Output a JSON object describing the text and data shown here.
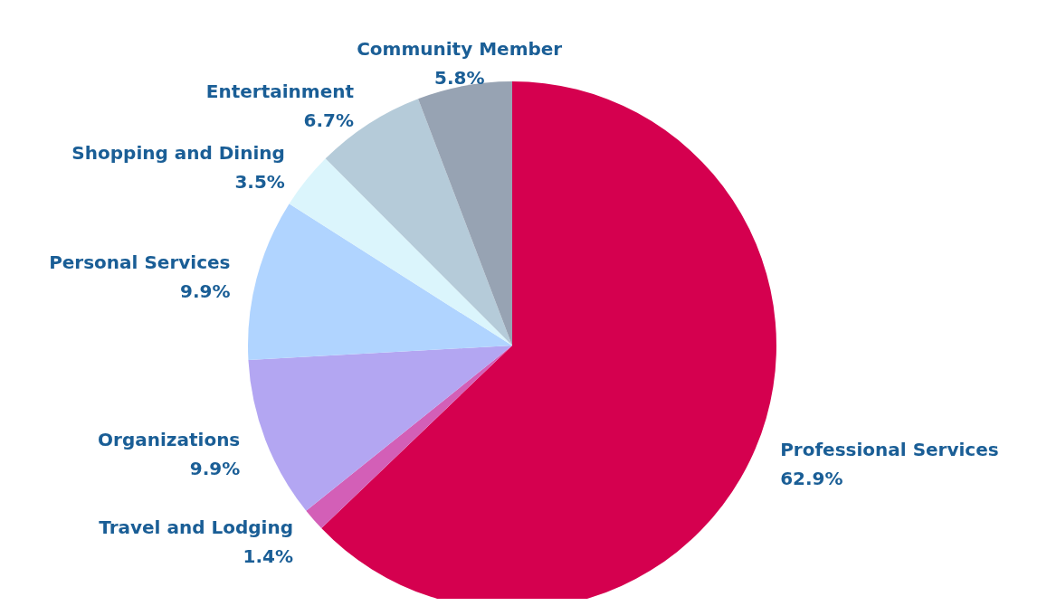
{
  "chart_data": {
    "type": "pie",
    "categories": [
      "Professional Services",
      "Travel and Lodging",
      "Organizations",
      "Personal Services",
      "Shopping and Dining",
      "Entertainment",
      "Community Member"
    ],
    "values": [
      62.9,
      1.4,
      9.9,
      9.9,
      3.5,
      6.7,
      5.8
    ],
    "colors": [
      "#d5004f",
      "#d35fb7",
      "#b3a6f2",
      "#b0d4ff",
      "#dbf5fc",
      "#b5cbd9",
      "#97a3b3"
    ],
    "value_labels": [
      "62.9%",
      "1.4%",
      "9.9%",
      "9.9%",
      "3.5%",
      "6.7%",
      "5.8%"
    ],
    "legend": false
  }
}
